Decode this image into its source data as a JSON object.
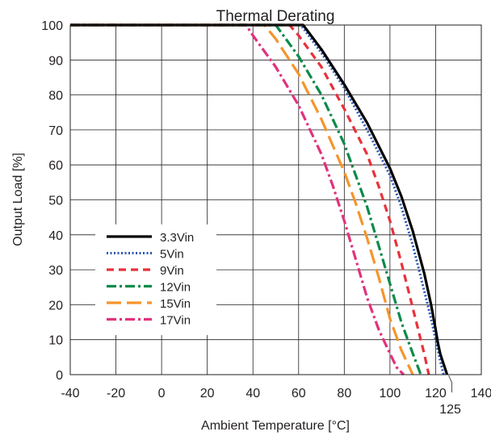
{
  "chart_data": {
    "type": "line",
    "title": "Thermal Derating",
    "xlabel": "Ambient Temperature [°C]",
    "ylabel": "Output Load [%]",
    "xlim": [
      -40,
      140
    ],
    "ylim": [
      0,
      100
    ],
    "xticks": [
      -40,
      -20,
      0,
      20,
      40,
      60,
      80,
      100,
      120,
      140
    ],
    "xtick_labels": [
      "-40",
      "-20",
      "0",
      "20",
      "40",
      "60",
      "80",
      "100",
      "120",
      "140"
    ],
    "yticks": [
      0,
      10,
      20,
      30,
      40,
      50,
      60,
      70,
      80,
      90,
      100
    ],
    "ytick_labels": [
      "0",
      "10",
      "20",
      "30",
      "40",
      "50",
      "60",
      "70",
      "80",
      "90",
      "100"
    ],
    "grid": true,
    "legend_position": "lower-left",
    "annotations": [
      {
        "text": "125",
        "x": 125,
        "y": 0
      }
    ],
    "series": [
      {
        "name": "3.3Vin",
        "color": "#000000",
        "dash": "solid",
        "x": [
          -40,
          60,
          62,
          70,
          80,
          90,
          100,
          105,
          110,
          115,
          118,
          120,
          121,
          122,
          123,
          124,
          125
        ],
        "y": [
          100,
          100,
          100,
          93,
          83,
          72,
          59,
          51,
          41,
          29,
          20,
          13,
          9,
          6,
          4,
          2,
          0
        ]
      },
      {
        "name": "5Vin",
        "color": "#2a55b4",
        "dash": "dot",
        "x": [
          -40,
          61,
          70,
          80,
          90,
          100,
          105,
          110,
          115,
          118,
          120,
          122,
          123.5
        ],
        "y": [
          100,
          100,
          92,
          82,
          70,
          57,
          48,
          37,
          24,
          16,
          10,
          4,
          0
        ]
      },
      {
        "name": "9Vin",
        "color": "#e8313b",
        "dash": "dash",
        "x": [
          -40,
          56,
          60,
          70,
          80,
          90,
          95,
          100,
          105,
          110,
          115,
          117
        ],
        "y": [
          100,
          100,
          97,
          88,
          76,
          63,
          54,
          44,
          32,
          19,
          6,
          0
        ]
      },
      {
        "name": "12Vin",
        "color": "#0b8a4a",
        "dash": "dashdot",
        "x": [
          -40,
          50,
          60,
          70,
          80,
          85,
          90,
          95,
          100,
          105,
          110,
          113.5
        ],
        "y": [
          100,
          100,
          91,
          80,
          66,
          57,
          48,
          37,
          26,
          15,
          6,
          0
        ]
      },
      {
        "name": "15Vin",
        "color": "#f5952b",
        "dash": "longdash",
        "x": [
          -40,
          45,
          50,
          60,
          70,
          80,
          85,
          90,
          95,
          100,
          105,
          110
        ],
        "y": [
          100,
          100,
          96,
          86,
          73,
          58,
          49,
          39,
          28,
          16,
          7,
          0
        ]
      },
      {
        "name": "17Vin",
        "color": "#e2317c",
        "dash": "dashdot",
        "x": [
          -40,
          37,
          40,
          50,
          60,
          70,
          75,
          80,
          85,
          90,
          95,
          100,
          103,
          106
        ],
        "y": [
          100,
          100,
          97,
          88,
          77,
          63,
          54,
          44,
          33,
          22,
          13,
          6,
          2,
          0
        ]
      }
    ]
  }
}
